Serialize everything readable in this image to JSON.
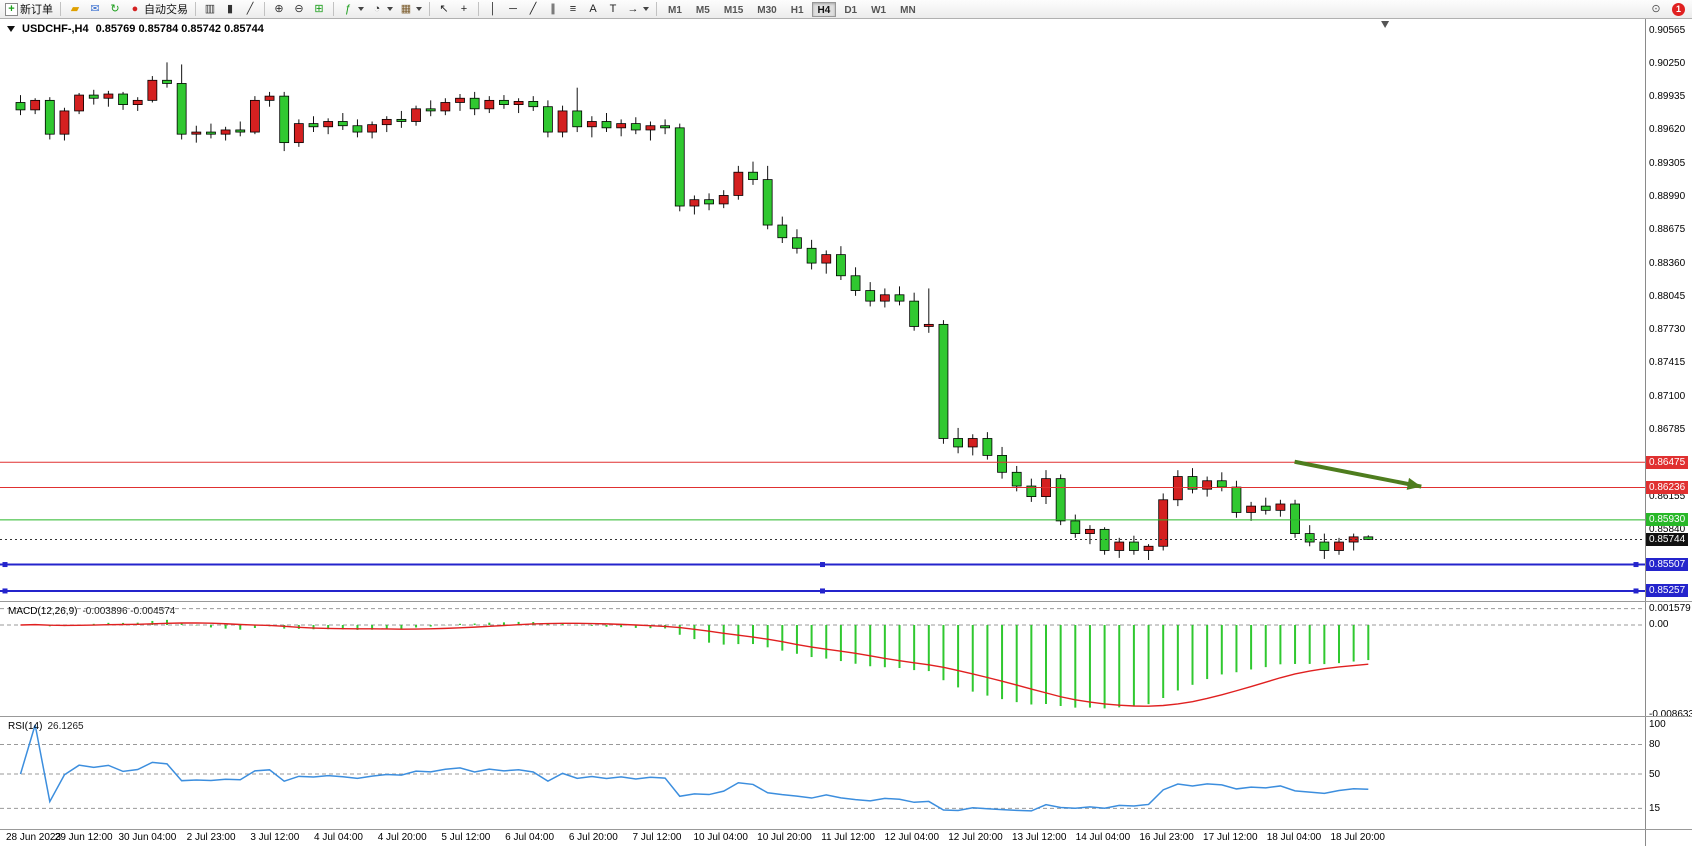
{
  "app": {
    "title": "MetaTrader Terminal"
  },
  "toolbar": {
    "groups": [
      {
        "name": "trade",
        "items": [
          {
            "name": "new-order-button",
            "icon": "new-order-icon",
            "glyph": "+",
            "icon_color": "#1a9e1a",
            "label": "新订单"
          }
        ]
      },
      {
        "name": "windows",
        "items": [
          {
            "name": "charts-profile-button",
            "icon": "folder-icon",
            "glyph": "▰",
            "icon_color": "#dfa000"
          },
          {
            "name": "messages-button",
            "icon": "mail-icon",
            "glyph": "✉",
            "icon_color": "#3a6fd0"
          },
          {
            "name": "refresh-button",
            "icon": "refresh-icon",
            "glyph": "↻",
            "icon_color": "#1a9e1a"
          },
          {
            "name": "auto-trading-button",
            "icon": "stop-icon",
            "glyph": "●",
            "icon_color": "#d42222",
            "label": "自动交易"
          }
        ]
      },
      {
        "name": "chart-type",
        "items": [
          {
            "name": "bar-chart-button",
            "icon": "bar-chart-icon",
            "glyph": "▥",
            "icon_color": "#333333"
          },
          {
            "name": "candlestick-chart-button",
            "icon": "candlestick-icon",
            "glyph": "▮",
            "icon_color": "#333333"
          },
          {
            "name": "line-chart-button",
            "icon": "line-chart-icon",
            "glyph": "╱",
            "icon_color": "#333333"
          }
        ]
      },
      {
        "name": "zoom",
        "items": [
          {
            "name": "zoom-in-button",
            "icon": "zoom-in-icon",
            "glyph": "⊕",
            "icon_color": "#333333"
          },
          {
            "name": "zoom-out-button",
            "icon": "zoom-out-icon",
            "glyph": "⊖",
            "icon_color": "#333333"
          },
          {
            "name": "tile-windows-button",
            "icon": "tile-windows-icon",
            "glyph": "⊞",
            "icon_color": "#1a9e1a"
          }
        ]
      },
      {
        "name": "chart-tools",
        "items": [
          {
            "name": "indicators-button",
            "icon": "indicators-icon",
            "glyph": "ƒ",
            "icon_color": "#1a9e1a",
            "dropdown": true
          },
          {
            "name": "periods-button",
            "icon": "clock-icon",
            "glyph": "◔",
            "icon_color": "#333333",
            "dropdown": true
          },
          {
            "name": "templates-button",
            "icon": "template-icon",
            "glyph": "▦",
            "icon_color": "#7a5a2a",
            "dropdown": true
          }
        ]
      },
      {
        "name": "cursor",
        "items": [
          {
            "name": "cursor-button",
            "icon": "pointer-icon",
            "glyph": "↖",
            "icon_color": "#222222"
          },
          {
            "name": "crosshair-button",
            "icon": "crosshair-icon",
            "glyph": "+",
            "icon_color": "#222222"
          }
        ]
      },
      {
        "name": "drawing",
        "items": [
          {
            "name": "vertical-line-button",
            "icon": "vertical-line-icon",
            "glyph": "│",
            "icon_color": "#222222"
          },
          {
            "name": "horizontal-line-button",
            "icon": "horizontal-line-icon",
            "glyph": "─",
            "icon_color": "#222222"
          },
          {
            "name": "trendline-button",
            "icon": "trendline-icon",
            "glyph": "╱",
            "icon_color": "#222222"
          },
          {
            "name": "channel-button",
            "icon": "channel-icon",
            "glyph": "∥",
            "icon_color": "#222222"
          },
          {
            "name": "fibonacci-button",
            "icon": "fibonacci-icon",
            "glyph": "≡",
            "icon_color": "#222222"
          },
          {
            "name": "text-button",
            "icon": "text-icon",
            "glyph": "A",
            "icon_color": "#222222"
          },
          {
            "name": "text-label-button",
            "icon": "text-label-icon",
            "glyph": "T",
            "icon_color": "#222222"
          },
          {
            "name": "arrows-button",
            "icon": "arrow-icon",
            "glyph": "→",
            "icon_color": "#222222",
            "dropdown": true
          }
        ]
      },
      {
        "name": "timeframes",
        "type": "tf",
        "items": [
          {
            "name": "tf-m1-button",
            "label": "M1"
          },
          {
            "name": "tf-m5-button",
            "label": "M5"
          },
          {
            "name": "tf-m15-button",
            "label": "M15"
          },
          {
            "name": "tf-m30-button",
            "label": "M30"
          },
          {
            "name": "tf-h1-button",
            "label": "H1"
          },
          {
            "name": "tf-h4-button",
            "label": "H4",
            "active": true
          },
          {
            "name": "tf-d1-button",
            "label": "D1"
          },
          {
            "name": "tf-w1-button",
            "label": "W1"
          },
          {
            "name": "tf-mn-button",
            "label": "MN"
          }
        ]
      }
    ],
    "right_items": [
      {
        "name": "search-button",
        "icon": "magnifier-icon",
        "glyph": "⊙",
        "icon_color": "#555555"
      },
      {
        "name": "notifications-button",
        "icon": "notification-badge",
        "glyph": "1"
      }
    ]
  },
  "chart": {
    "symbol_label": "USDCHF-,H4",
    "ohlc_text": "0.85769 0.85784 0.85742 0.85744"
  },
  "price_axis": {
    "labels": [
      "0.90565",
      "0.90250",
      "0.89935",
      "0.89620",
      "0.89305",
      "0.88990",
      "0.88675",
      "0.88360",
      "0.88045",
      "0.87730",
      "0.87415",
      "0.87100",
      "0.86785",
      "0.86155",
      "0.85840"
    ],
    "badges": [
      {
        "text": "0.86475",
        "bg": "#e03030",
        "fg": "#ffffff"
      },
      {
        "text": "0.86236",
        "bg": "#e03030",
        "fg": "#ffffff"
      },
      {
        "text": "0.85930",
        "bg": "#28b828",
        "fg": "#ffffff"
      },
      {
        "text": "0.85744",
        "bg": "#111111",
        "fg": "#ffffff"
      },
      {
        "text": "0.85507",
        "bg": "#2424cc",
        "fg": "#ffffff"
      },
      {
        "text": "0.85257",
        "bg": "#2424cc",
        "fg": "#ffffff"
      }
    ]
  },
  "chart_data": {
    "type": "candlestick",
    "symbol": "USDCHF-",
    "timeframe": "H4",
    "title": "USDCHF-,H4",
    "current_ohlc": {
      "open": 0.85769,
      "high": 0.85784,
      "low": 0.85742,
      "close": 0.85744
    },
    "up_color": "#d42020",
    "down_color": "#30c830",
    "y_range": [
      0.85162,
      0.9067
    ],
    "grid": false,
    "candles": [
      [
        0.8988,
        0.8995,
        0.8976,
        0.8981
      ],
      [
        0.8981,
        0.8992,
        0.8977,
        0.899
      ],
      [
        0.899,
        0.8993,
        0.8953,
        0.8958
      ],
      [
        0.8958,
        0.8983,
        0.8952,
        0.898
      ],
      [
        0.898,
        0.8997,
        0.8977,
        0.8995
      ],
      [
        0.8995,
        0.9,
        0.8986,
        0.8992
      ],
      [
        0.8992,
        0.8999,
        0.8984,
        0.8996
      ],
      [
        0.8996,
        0.8998,
        0.8981,
        0.8986
      ],
      [
        0.8986,
        0.8993,
        0.898,
        0.899
      ],
      [
        0.899,
        0.9013,
        0.8988,
        0.9009
      ],
      [
        0.9009,
        0.9026,
        0.9002,
        0.9006
      ],
      [
        0.9006,
        0.9024,
        0.8953,
        0.8958
      ],
      [
        0.8958,
        0.8966,
        0.895,
        0.896
      ],
      [
        0.896,
        0.8968,
        0.8954,
        0.8958
      ],
      [
        0.8958,
        0.8965,
        0.8952,
        0.8962
      ],
      [
        0.8962,
        0.897,
        0.8956,
        0.896
      ],
      [
        0.896,
        0.8994,
        0.8958,
        0.899
      ],
      [
        0.899,
        0.8998,
        0.8984,
        0.8994
      ],
      [
        0.8994,
        0.8998,
        0.8942,
        0.895
      ],
      [
        0.895,
        0.8972,
        0.8946,
        0.8968
      ],
      [
        0.8968,
        0.8975,
        0.896,
        0.8965
      ],
      [
        0.8965,
        0.8973,
        0.8958,
        0.897
      ],
      [
        0.897,
        0.8978,
        0.8962,
        0.8966
      ],
      [
        0.8966,
        0.8972,
        0.8955,
        0.896
      ],
      [
        0.896,
        0.897,
        0.8954,
        0.8967
      ],
      [
        0.8967,
        0.8975,
        0.896,
        0.8972
      ],
      [
        0.8972,
        0.898,
        0.8964,
        0.897
      ],
      [
        0.897,
        0.8985,
        0.8966,
        0.8982
      ],
      [
        0.8982,
        0.899,
        0.8975,
        0.898
      ],
      [
        0.898,
        0.8992,
        0.8976,
        0.8988
      ],
      [
        0.8988,
        0.8996,
        0.898,
        0.8992
      ],
      [
        0.8992,
        0.8998,
        0.8976,
        0.8982
      ],
      [
        0.8982,
        0.8994,
        0.8978,
        0.899
      ],
      [
        0.899,
        0.8995,
        0.8982,
        0.8986
      ],
      [
        0.8986,
        0.8992,
        0.8978,
        0.8989
      ],
      [
        0.8989,
        0.8994,
        0.898,
        0.8984
      ],
      [
        0.8984,
        0.899,
        0.8955,
        0.896
      ],
      [
        0.896,
        0.8985,
        0.8955,
        0.898
      ],
      [
        0.898,
        0.9002,
        0.896,
        0.8965
      ],
      [
        0.8965,
        0.8975,
        0.8955,
        0.897
      ],
      [
        0.897,
        0.8978,
        0.896,
        0.8964
      ],
      [
        0.8964,
        0.8972,
        0.8956,
        0.8968
      ],
      [
        0.8968,
        0.8974,
        0.8958,
        0.8962
      ],
      [
        0.8962,
        0.897,
        0.8952,
        0.8966
      ],
      [
        0.8966,
        0.8972,
        0.8958,
        0.8964
      ],
      [
        0.8964,
        0.8968,
        0.8885,
        0.889
      ],
      [
        0.889,
        0.89,
        0.8882,
        0.8896
      ],
      [
        0.8896,
        0.8902,
        0.8886,
        0.8892
      ],
      [
        0.8892,
        0.8905,
        0.8888,
        0.89
      ],
      [
        0.89,
        0.8928,
        0.8896,
        0.8922
      ],
      [
        0.8922,
        0.8932,
        0.891,
        0.8915
      ],
      [
        0.8915,
        0.8928,
        0.8868,
        0.8872
      ],
      [
        0.8872,
        0.888,
        0.8855,
        0.886
      ],
      [
        0.886,
        0.8868,
        0.8845,
        0.885
      ],
      [
        0.885,
        0.8858,
        0.883,
        0.8836
      ],
      [
        0.8836,
        0.8848,
        0.8826,
        0.8844
      ],
      [
        0.8844,
        0.8852,
        0.882,
        0.8824
      ],
      [
        0.8824,
        0.8832,
        0.8805,
        0.881
      ],
      [
        0.881,
        0.8818,
        0.8795,
        0.88
      ],
      [
        0.88,
        0.8812,
        0.8794,
        0.8806
      ],
      [
        0.8806,
        0.8814,
        0.8796,
        0.88
      ],
      [
        0.88,
        0.8808,
        0.8772,
        0.8776
      ],
      [
        0.8776,
        0.8812,
        0.877,
        0.8778
      ],
      [
        0.8778,
        0.8782,
        0.8665,
        0.867
      ],
      [
        0.867,
        0.868,
        0.8656,
        0.8662
      ],
      [
        0.8662,
        0.8674,
        0.8654,
        0.867
      ],
      [
        0.867,
        0.8676,
        0.865,
        0.8654
      ],
      [
        0.8654,
        0.8662,
        0.8632,
        0.8638
      ],
      [
        0.8638,
        0.8644,
        0.862,
        0.8625
      ],
      [
        0.8625,
        0.8632,
        0.861,
        0.8615
      ],
      [
        0.8615,
        0.864,
        0.8608,
        0.8632
      ],
      [
        0.8632,
        0.8636,
        0.8588,
        0.8592
      ],
      [
        0.8592,
        0.8598,
        0.8576,
        0.858
      ],
      [
        0.858,
        0.8588,
        0.857,
        0.8584
      ],
      [
        0.8584,
        0.8586,
        0.856,
        0.8564
      ],
      [
        0.8564,
        0.8576,
        0.8557,
        0.8572
      ],
      [
        0.8572,
        0.8578,
        0.856,
        0.8564
      ],
      [
        0.8564,
        0.857,
        0.8555,
        0.8568
      ],
      [
        0.8568,
        0.8618,
        0.8564,
        0.8612
      ],
      [
        0.8612,
        0.864,
        0.8606,
        0.8634
      ],
      [
        0.8634,
        0.8642,
        0.8618,
        0.8622
      ],
      [
        0.8622,
        0.8634,
        0.8615,
        0.863
      ],
      [
        0.863,
        0.8638,
        0.862,
        0.8624
      ],
      [
        0.8624,
        0.863,
        0.8595,
        0.86
      ],
      [
        0.86,
        0.861,
        0.8592,
        0.8606
      ],
      [
        0.8606,
        0.8614,
        0.8598,
        0.8602
      ],
      [
        0.8602,
        0.8612,
        0.8596,
        0.8608
      ],
      [
        0.8608,
        0.8612,
        0.8576,
        0.858
      ],
      [
        0.858,
        0.8588,
        0.8568,
        0.8572
      ],
      [
        0.8572,
        0.858,
        0.8556,
        0.8564
      ],
      [
        0.8564,
        0.8576,
        0.856,
        0.8572
      ],
      [
        0.8572,
        0.858,
        0.8564,
        0.85769
      ],
      [
        0.85769,
        0.85784,
        0.85742,
        0.85744
      ]
    ],
    "hlines": [
      {
        "price": 0.86475,
        "color": "#e03030",
        "width": 1
      },
      {
        "price": 0.86236,
        "color": "#e03030",
        "width": 1
      },
      {
        "price": 0.8593,
        "color": "#28b828",
        "width": 1
      },
      {
        "price": 0.85507,
        "color": "#2424cc",
        "width": 2,
        "selected": true
      },
      {
        "price": 0.85257,
        "color": "#2424cc",
        "width": 2,
        "selected": true
      }
    ],
    "current_price": {
      "value": 0.85744,
      "line_color": "#333333"
    },
    "arrow": {
      "x1_frac": 0.787,
      "price1": 0.8648,
      "x2_frac": 0.864,
      "price2": 0.86245,
      "color": "#4e7d1e"
    },
    "shift_marker_x_frac": 0.842,
    "indicators": {
      "macd": {
        "label": "MACD(12,26,9)",
        "values_text": "-0.003896 -0.004574",
        "params": [
          12,
          26,
          9
        ],
        "histogram_color": "#30c830",
        "signal_color": "#e02020",
        "scale_labels": [
          "0.001579",
          "0.00",
          "-0.008633"
        ],
        "y_range": [
          -0.0088,
          0.00203
        ]
      },
      "rsi": {
        "label": "RSI(14)",
        "value_text": "26.1265",
        "period": 14,
        "color": "#3c8ede",
        "scale_labels": [
          "100",
          "80",
          "50",
          "15"
        ],
        "levels": [
          80,
          50,
          15
        ],
        "y_range": [
          -6,
          106
        ]
      }
    },
    "x_labels": [
      "28 Jun 2023",
      "29 Jun 12:00",
      "30 Jun 04:00",
      "2 Jul 23:00",
      "3 Jul 12:00",
      "4 Jul 04:00",
      "4 Jul 20:00",
      "5 Jul 12:00",
      "6 Jul 04:00",
      "6 Jul 20:00",
      "7 Jul 12:00",
      "10 Jul 04:00",
      "10 Jul 20:00",
      "11 Jul 12:00",
      "12 Jul 04:00",
      "12 Jul 20:00",
      "13 Jul 12:00",
      "14 Jul 04:00",
      "16 Jul 23:00",
      "17 Jul 12:00",
      "18 Jul 04:00",
      "18 Jul 20:00"
    ]
  }
}
